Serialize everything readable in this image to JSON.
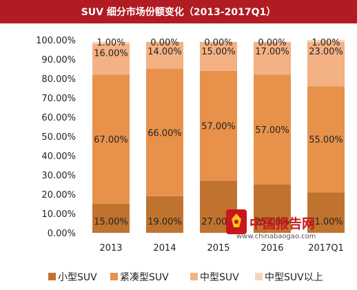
{
  "colors": {
    "title_bg": "#b11c22",
    "series": [
      "#c0732e",
      "#e8914a",
      "#f4b183",
      "#f9d3ba"
    ]
  },
  "watermark": {
    "brand_text": "中国报告网",
    "url_text": "www.chinabaogao.com",
    "logo_icon": "rooster-logo"
  },
  "chart_data": {
    "type": "bar",
    "stacked": true,
    "title": "SUV  细分市场份额变化（2013-2017Q1）",
    "categories": [
      "2013",
      "2014",
      "2015",
      "2016",
      "2017Q1"
    ],
    "y_ticks": [
      "0.00%",
      "10.00%",
      "20.00%",
      "30.00%",
      "40.00%",
      "50.00%",
      "60.00%",
      "70.00%",
      "80.00%",
      "90.00%",
      "100.00%"
    ],
    "ylim": [
      0,
      100
    ],
    "grid": false,
    "legend_position": "bottom",
    "series": [
      {
        "name": "小型SUV",
        "values": [
          15,
          19,
          27,
          25,
          21
        ],
        "labels": [
          "15.00%",
          "19.00%",
          "27.00%",
          "25.00%",
          "21.00%"
        ]
      },
      {
        "name": "紧凑型SUV",
        "values": [
          67,
          66,
          57,
          57,
          55
        ],
        "labels": [
          "67.00%",
          "66.00%",
          "57.00%",
          "57.00%",
          "55.00%"
        ]
      },
      {
        "name": "中型SUV",
        "values": [
          16,
          14,
          15,
          17,
          23
        ],
        "labels": [
          "16.00%",
          "14.00%",
          "15.00%",
          "17.00%",
          "23.00%"
        ]
      },
      {
        "name": "中型SUV以上",
        "values": [
          1,
          0,
          0,
          0,
          1
        ],
        "labels": [
          "1.00%",
          "0.00%",
          "0.00%",
          "0.00%",
          "1.00%"
        ]
      }
    ]
  }
}
